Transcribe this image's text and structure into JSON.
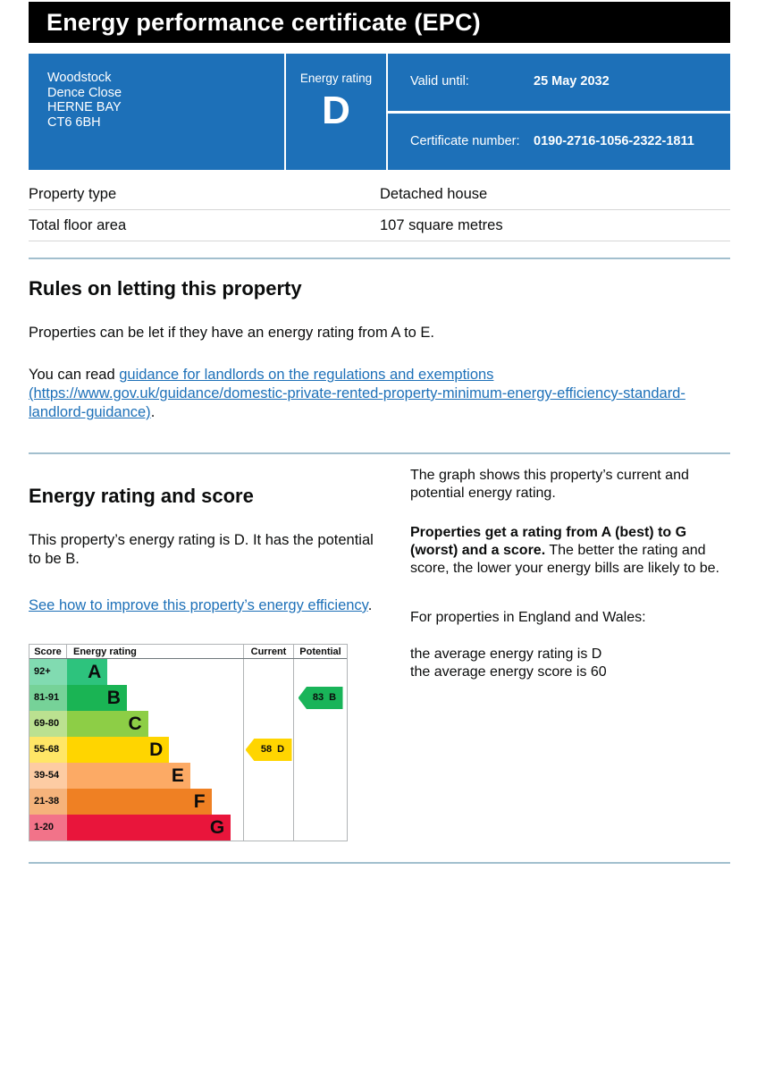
{
  "colors": {
    "header_bar": "#000000",
    "summary_box": "#1d70b8",
    "divider_rule": "#a2bfce",
    "link": "#1d70b8",
    "table_row_border": "#d6d6d6",
    "chart_grid": "#b1b4b6",
    "text": "#0b0c0c"
  },
  "header": {
    "title": "Energy performance certificate (EPC)"
  },
  "summary": {
    "address_lines": [
      "Woodstock",
      "Dence Close",
      "HERNE BAY",
      "CT6 6BH"
    ],
    "energy_rating_label": "Energy rating",
    "energy_rating": "D",
    "valid_until_label": "Valid until:",
    "valid_until": "25 May 2032",
    "certificate_number_label": "Certificate number:",
    "certificate_number": "0190-2716-1056-2322-1811"
  },
  "property": {
    "type_label": "Property type",
    "type_value": "Detached house",
    "area_label": "Total floor area",
    "area_value": "107 square metres"
  },
  "rules": {
    "heading": "Rules on letting this property",
    "paragraph": "Properties can be let if they have an energy rating from A to E.",
    "read_prefix": "You can read ",
    "link_text": "guidance for landlords on the regulations and exemptions (https://www.gov.uk/guidance/domestic-private-rented-property-minimum-energy-efficiency-standard-landlord-guidance)",
    "read_suffix": "."
  },
  "rating_section": {
    "heading": "Energy rating and score",
    "intro": "This property’s energy rating is D. It has the potential to be B.",
    "improve_link": "See how to improve this property’s energy efficiency",
    "improve_suffix": ".",
    "graph_para": "The graph shows this property’s current and potential energy rating.",
    "explain_bold": "Properties get a rating from A (best) to G (worst) and a score.",
    "explain_rest": " The better the rating and score, the lower your energy bills are likely to be.",
    "england_wales": "For properties in England and Wales:",
    "average_rating_line": "the average energy rating is D",
    "average_score_line": "the average energy score is 60"
  },
  "chart_data": {
    "type": "bar",
    "orientation": "horizontal",
    "title": "Energy rating and score graph",
    "columns": [
      "Score",
      "Energy rating",
      "Current",
      "Potential"
    ],
    "bands": [
      {
        "range": "92+",
        "letter": "A",
        "color": "#2dc37d",
        "tint": "#81dbb1",
        "bar_width_pct": 23
      },
      {
        "range": "81-91",
        "letter": "B",
        "color": "#1ab454",
        "tint": "#76d298",
        "bar_width_pct": 34
      },
      {
        "range": "69-80",
        "letter": "C",
        "color": "#8dce46",
        "tint": "#bbe190",
        "bar_width_pct": 46
      },
      {
        "range": "55-68",
        "letter": "D",
        "color": "#ffd500",
        "tint": "#ffe666",
        "bar_width_pct": 58
      },
      {
        "range": "39-54",
        "letter": "E",
        "color": "#fcaa65",
        "tint": "#fdcca3",
        "bar_width_pct": 70
      },
      {
        "range": "21-38",
        "letter": "F",
        "color": "#ef8023",
        "tint": "#f5b37b",
        "bar_width_pct": 82
      },
      {
        "range": "1-20",
        "letter": "G",
        "color": "#e9153b",
        "tint": "#f27389",
        "bar_width_pct": 93
      }
    ],
    "current": {
      "score": 58,
      "band": "D",
      "color": "#ffd500"
    },
    "potential": {
      "score": 83,
      "band": "B",
      "color": "#19b459"
    }
  }
}
